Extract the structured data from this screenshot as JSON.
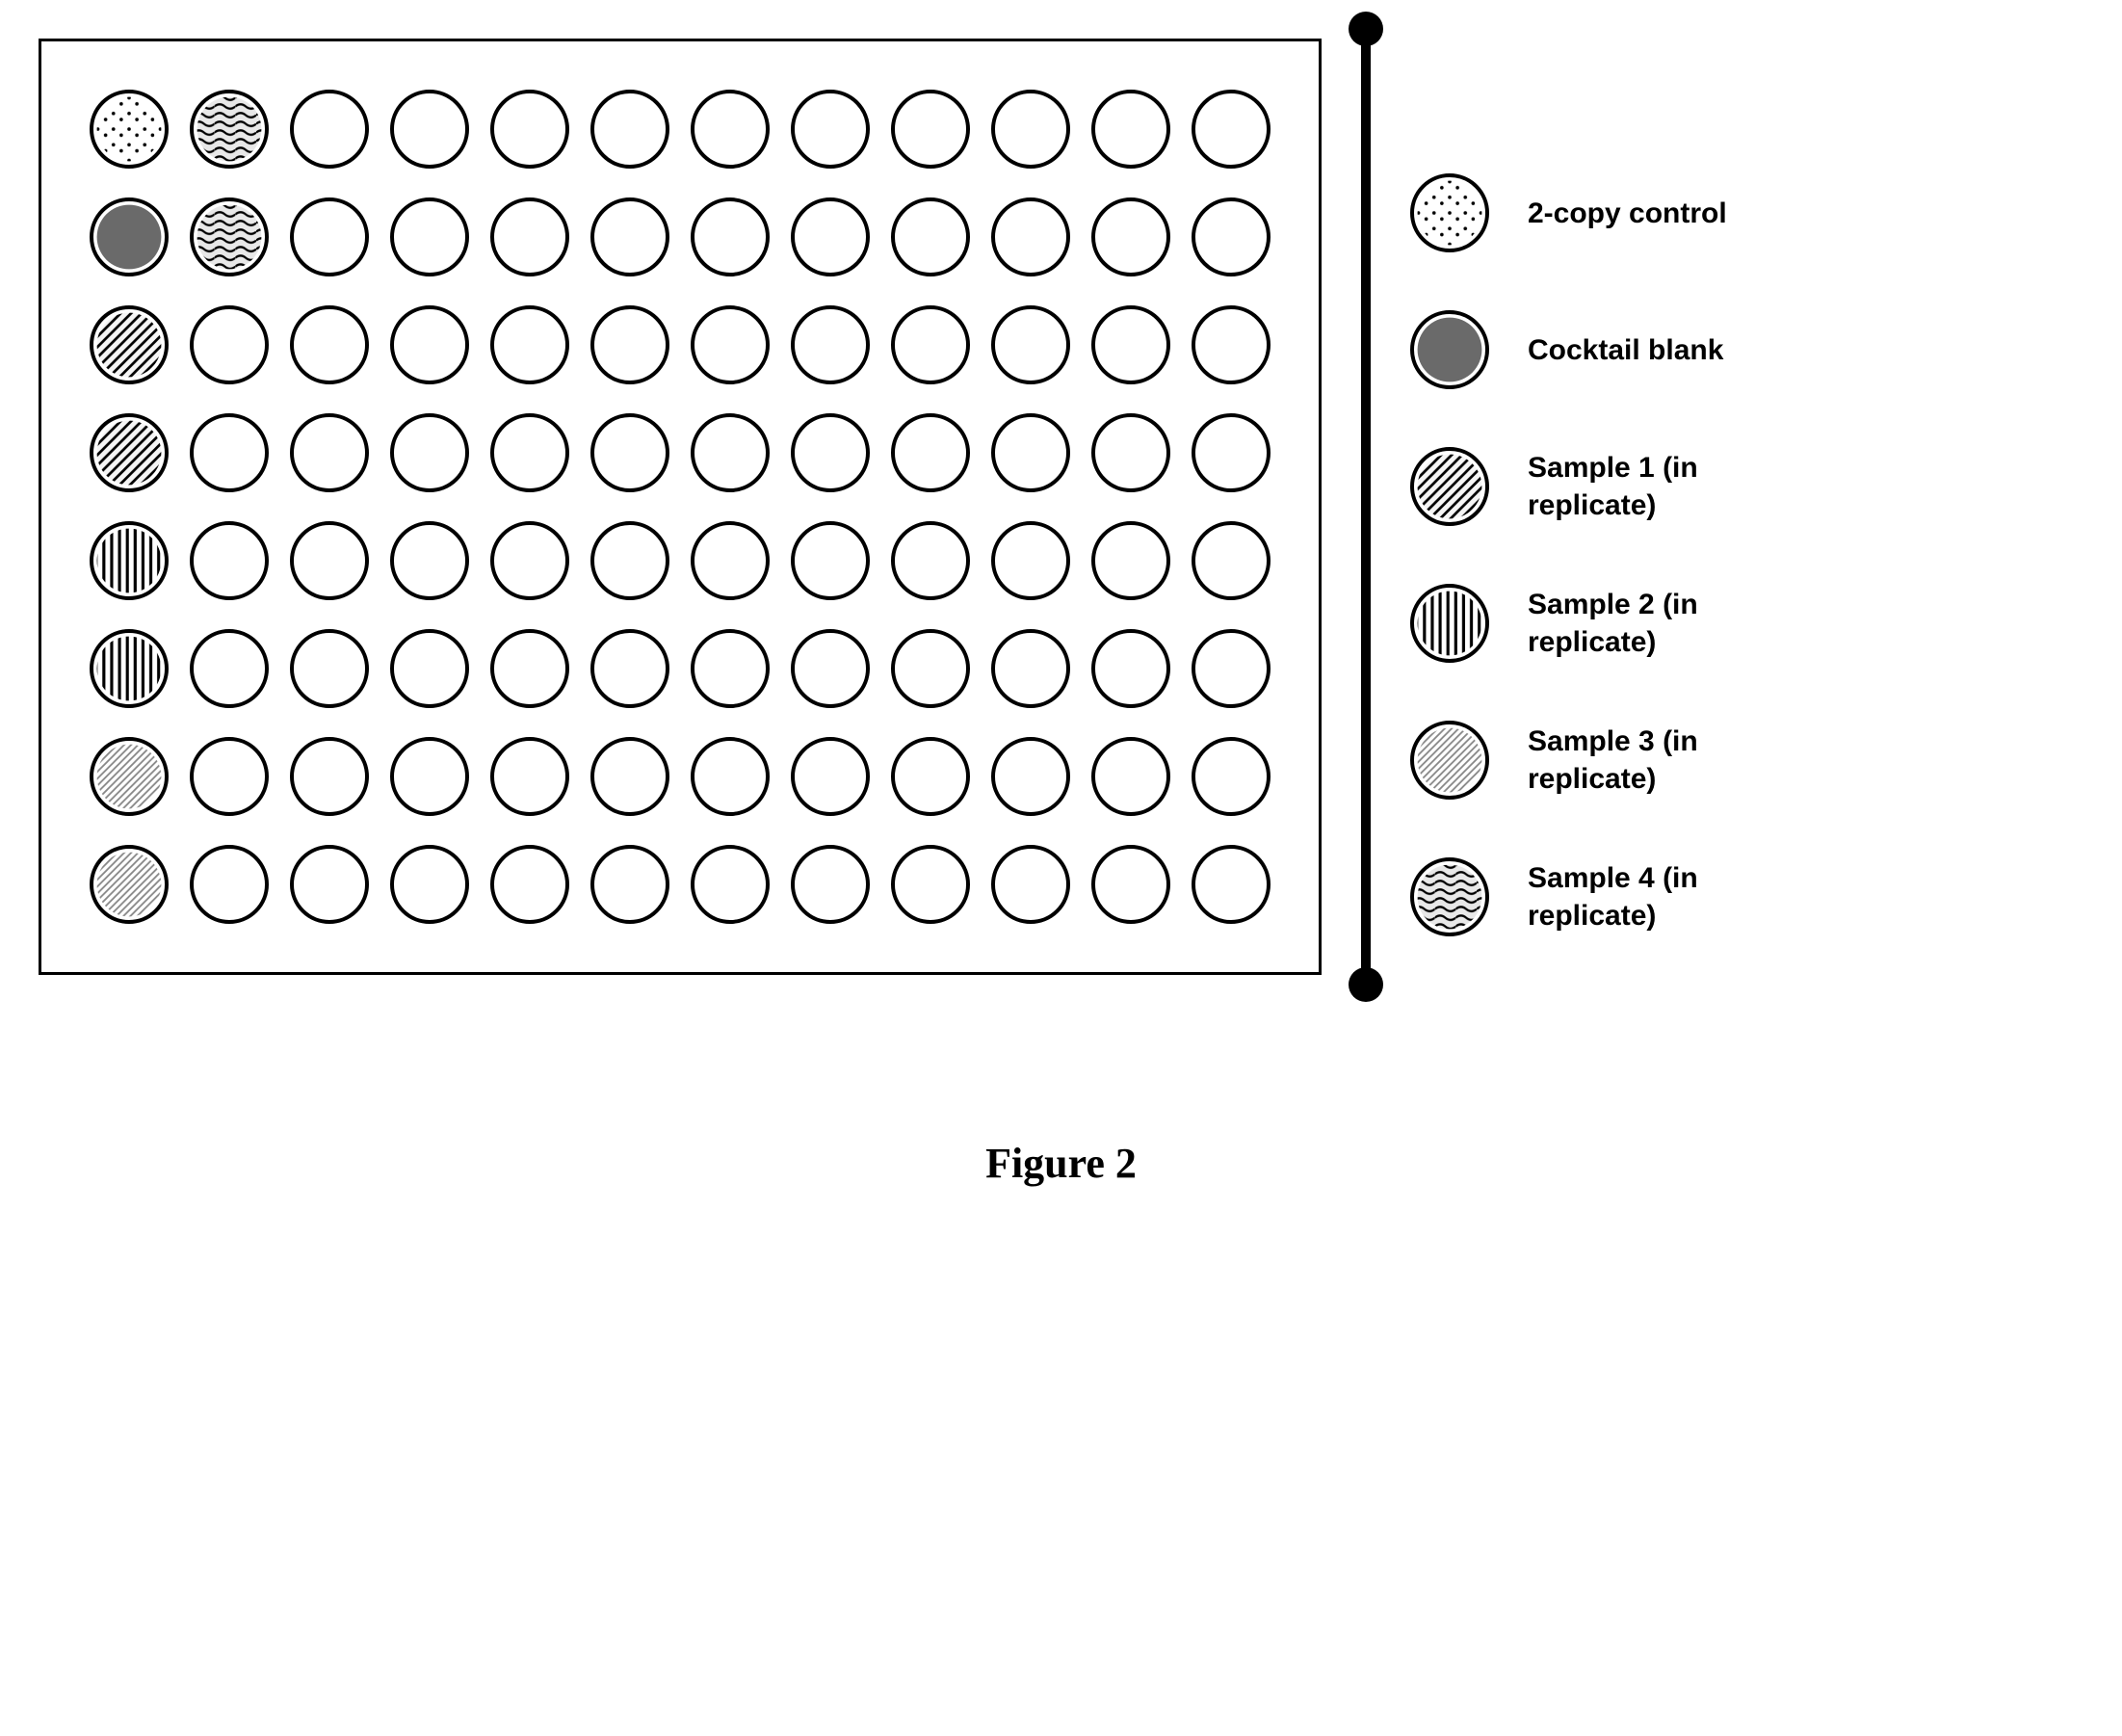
{
  "figure": {
    "caption": "Figure 2",
    "caption_fontsize": 44,
    "caption_font": "Times New Roman"
  },
  "plate": {
    "rows": 8,
    "cols": 12,
    "well_diameter": 82,
    "well_border": 4,
    "border_width": 3,
    "row_gap": 30,
    "col_gap": 22,
    "padding": 50,
    "background_color": "#ffffff",
    "well_stroke": "#000000",
    "wells": [
      [
        "dots",
        "wavy",
        "empty",
        "empty",
        "empty",
        "empty",
        "empty",
        "empty",
        "empty",
        "empty",
        "empty",
        "empty"
      ],
      [
        "solid",
        "wavy",
        "empty",
        "empty",
        "empty",
        "empty",
        "empty",
        "empty",
        "empty",
        "empty",
        "empty",
        "empty"
      ],
      [
        "hatch",
        "empty",
        "empty",
        "empty",
        "empty",
        "empty",
        "empty",
        "empty",
        "empty",
        "empty",
        "empty",
        "empty"
      ],
      [
        "hatch",
        "empty",
        "empty",
        "empty",
        "empty",
        "empty",
        "empty",
        "empty",
        "empty",
        "empty",
        "empty",
        "empty"
      ],
      [
        "vertical",
        "empty",
        "empty",
        "empty",
        "empty",
        "empty",
        "empty",
        "empty",
        "empty",
        "empty",
        "empty",
        "empty"
      ],
      [
        "vertical",
        "empty",
        "empty",
        "empty",
        "empty",
        "empty",
        "empty",
        "empty",
        "empty",
        "empty",
        "empty",
        "empty"
      ],
      [
        "finehatch",
        "empty",
        "empty",
        "empty",
        "empty",
        "empty",
        "empty",
        "empty",
        "empty",
        "empty",
        "empty",
        "empty"
      ],
      [
        "finehatch",
        "empty",
        "empty",
        "empty",
        "empty",
        "empty",
        "empty",
        "empty",
        "empty",
        "empty",
        "empty",
        "empty"
      ]
    ]
  },
  "legend": {
    "items": [
      {
        "pattern": "dots",
        "label": "2-copy control"
      },
      {
        "pattern": "solid",
        "label": "Cocktail blank"
      },
      {
        "pattern": "hatch",
        "label": "Sample 1 (in replicate)"
      },
      {
        "pattern": "vertical",
        "label": "Sample 2 (in replicate)"
      },
      {
        "pattern": "finehatch",
        "label": "Sample 3 (in replicate)"
      },
      {
        "pattern": "wavy",
        "label": "Sample 4 (in replicate)"
      }
    ],
    "label_fontsize": 30,
    "label_fontweight": "bold",
    "icon_diameter": 82,
    "gap": 60
  },
  "barbell": {
    "line_width": 10,
    "dot_diameter": 36,
    "color": "#000000"
  },
  "patterns": {
    "dots": {
      "type": "dots",
      "bg": "#ffffff",
      "fg": "#000000"
    },
    "solid": {
      "type": "solid",
      "bg": "#666666"
    },
    "hatch": {
      "type": "diagonal",
      "bg": "#f0f0f0",
      "fg": "#000000",
      "spacing": 8
    },
    "vertical": {
      "type": "vertical",
      "bg": "#ffffff",
      "fg": "#000000",
      "spacing": 6
    },
    "finehatch": {
      "type": "diagonal-fine",
      "bg": "#ffffff",
      "fg": "#999999",
      "spacing": 5
    },
    "wavy": {
      "type": "wavy",
      "bg": "#e0e0e0",
      "fg": "#000000"
    }
  }
}
